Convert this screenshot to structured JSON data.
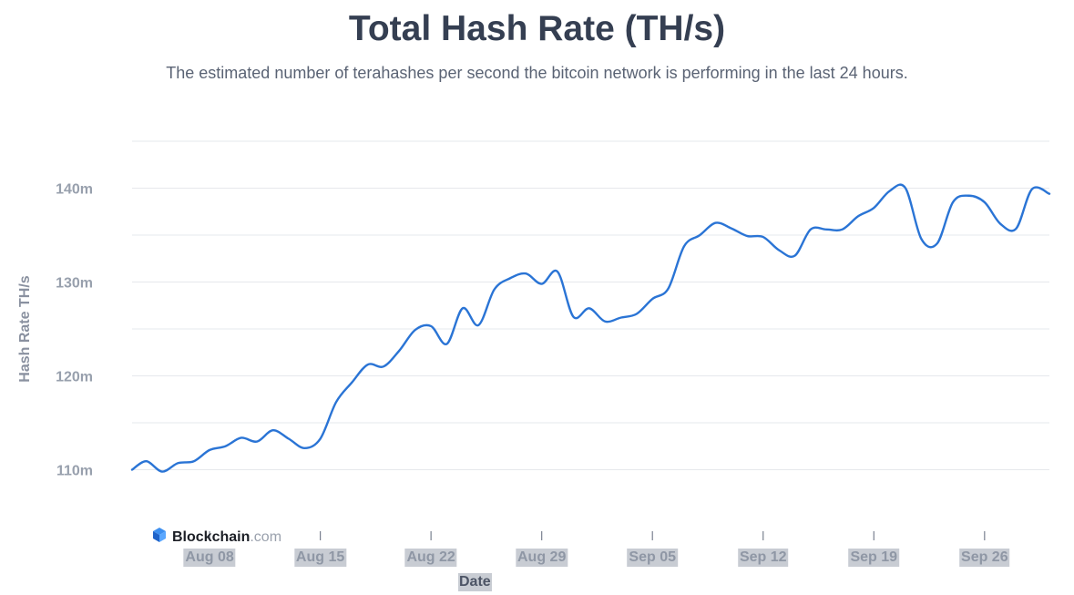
{
  "title": "Total Hash Rate (TH/s)",
  "subtitle": "The estimated number of terahashes per second the bitcoin network is performing in the last 24 hours.",
  "watermark": {
    "brand": "Blockchain",
    "suffix": ".com",
    "icon": "blockchain-logo-icon"
  },
  "colors": {
    "line": "#2a74d5",
    "grid": "#e6e8ec",
    "title": "#353f52",
    "axis_text": "#98a0ad"
  },
  "chart_data": {
    "type": "line",
    "title": "Total Hash Rate (TH/s)",
    "xlabel": "Date",
    "ylabel": "Hash Rate TH/s",
    "ylim": [
      105,
      145
    ],
    "yticks": [
      110,
      120,
      130,
      140
    ],
    "ytick_labels": [
      "110m",
      "120m",
      "130m",
      "140m"
    ],
    "xticks": [
      7,
      14,
      21,
      28,
      35,
      42,
      49,
      56
    ],
    "xtick_labels": [
      "Aug 08",
      "Aug 15",
      "Aug 22",
      "Aug 29",
      "Sep 05",
      "Sep 12",
      "Sep 19",
      "Sep 26"
    ],
    "xlim": [
      2.1,
      60.1
    ],
    "grid": true,
    "legend": "none",
    "series": [
      {
        "x": [
          2.1,
          3.0,
          4.0,
          5.0,
          6.0,
          7.0,
          8.0,
          9.0,
          10.0,
          11.0,
          12.0,
          13.0,
          14.0,
          15.0,
          16.0,
          17.0,
          18.0,
          19.0,
          20.0,
          21.0,
          22.0,
          23.0,
          24.0,
          25.0,
          26.0,
          27.0,
          28.0,
          29.0,
          30.0,
          31.0,
          32.0,
          33.0,
          34.0,
          35.0,
          36.0,
          37.0,
          38.0,
          39.0,
          40.0,
          41.0,
          42.0,
          43.0,
          44.0,
          45.0,
          46.0,
          47.0,
          48.0,
          49.0,
          50.0,
          51.0,
          52.0,
          53.0,
          54.0,
          55.0,
          56.0,
          57.0,
          58.0,
          59.0,
          60.1
        ],
        "values": [
          110.0,
          110.9,
          109.8,
          110.7,
          110.9,
          112.1,
          112.5,
          113.4,
          113.0,
          114.2,
          113.3,
          112.3,
          113.3,
          117.2,
          119.3,
          121.2,
          121.0,
          122.7,
          124.9,
          125.3,
          123.4,
          127.2,
          125.4,
          129.2,
          130.4,
          130.9,
          129.8,
          131.1,
          126.3,
          127.2,
          125.8,
          126.2,
          126.6,
          128.2,
          129.3,
          133.8,
          135.0,
          136.3,
          135.7,
          134.9,
          134.8,
          133.4,
          132.8,
          135.6,
          135.6,
          135.6,
          137.0,
          137.9,
          139.7,
          140.0,
          134.6,
          134.1,
          138.5,
          139.2,
          138.5,
          136.2,
          135.7,
          139.9,
          139.4
        ]
      }
    ]
  }
}
